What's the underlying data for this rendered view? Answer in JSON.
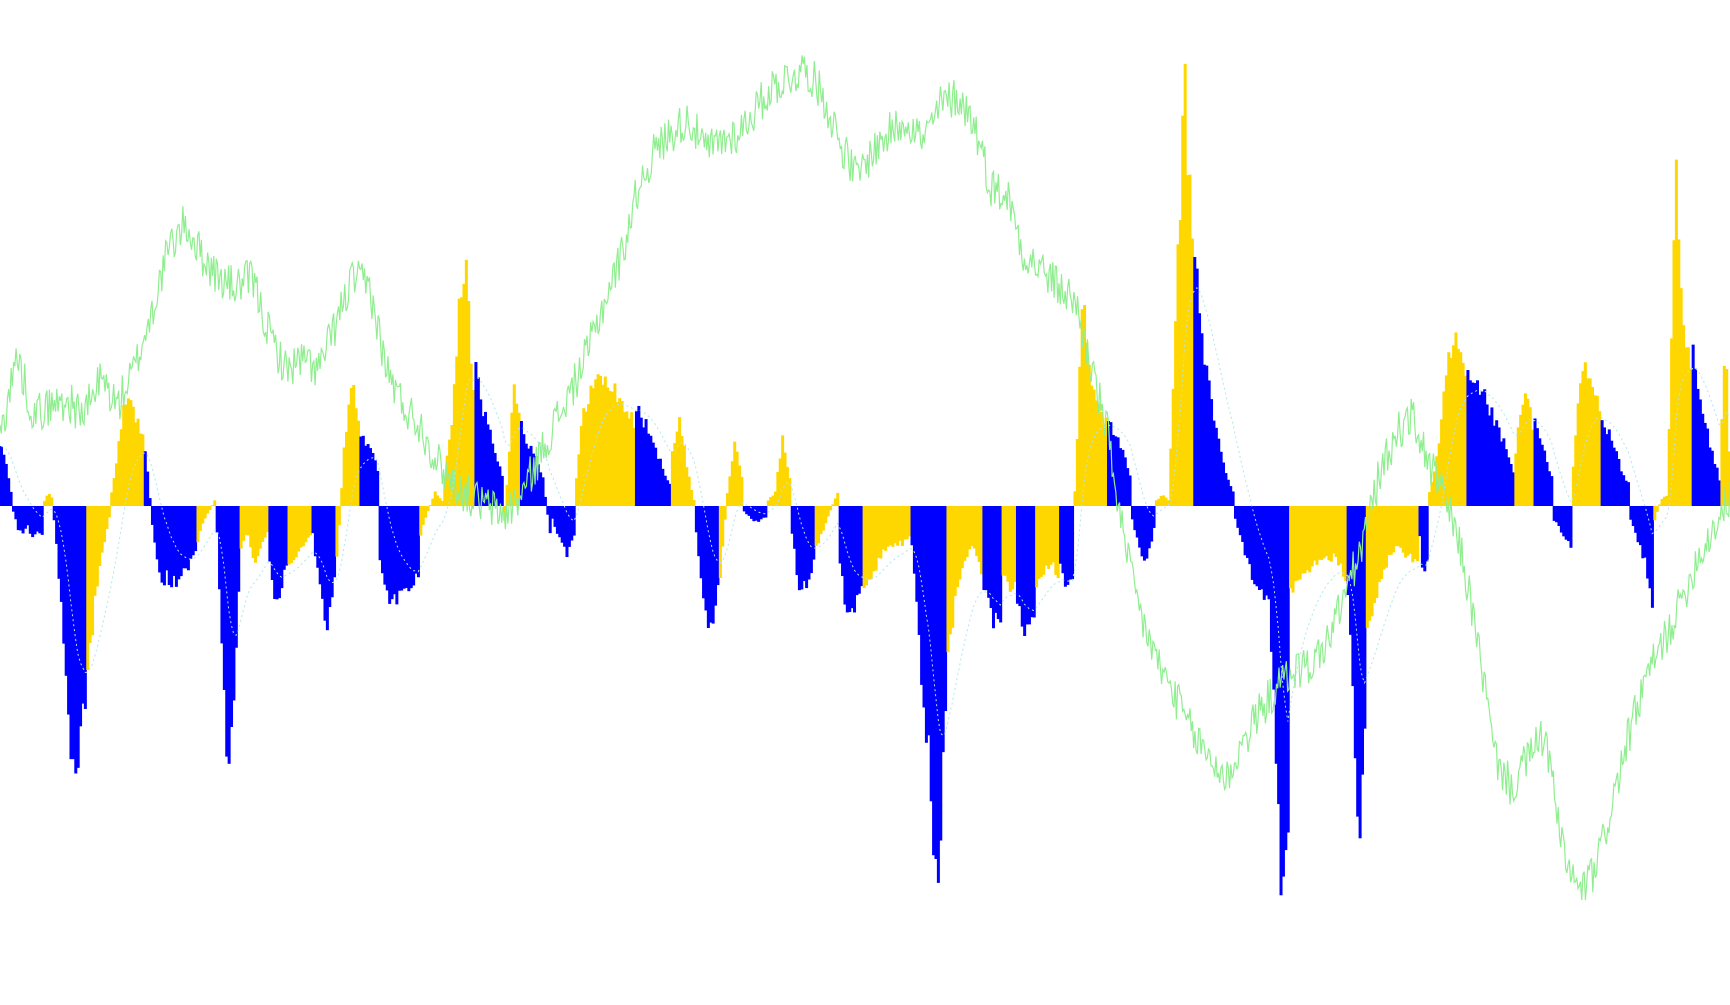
{
  "chart_data": {
    "type": "bar",
    "title": "",
    "xlabel": "",
    "ylabel": "",
    "grid": false,
    "legend": "none",
    "colors": {
      "bar_up": "#FFD700",
      "bar_down": "#0000FF",
      "price_line": "#90EE90",
      "signal_line": "#AEE7EE",
      "background": "#FFFFFF"
    },
    "ylim_histogram": [
      -1,
      1
    ],
    "ylim_price": [
      0,
      1
    ],
    "segments": [
      {
        "i0": 0,
        "i1": 5,
        "side": "blue",
        "vals": [
          0.2,
          0.18,
          0.12,
          0.05
        ]
      },
      {
        "i0": 5,
        "i1": 18,
        "side": "blue",
        "vals": [
          -0.02,
          -0.08,
          -0.1,
          -0.07,
          -0.12,
          -0.09,
          -0.11
        ]
      },
      {
        "i0": 18,
        "i1": 22,
        "side": "yellow",
        "vals": [
          0.02,
          0.05,
          0.03
        ]
      },
      {
        "i0": 22,
        "i1": 36,
        "side": "blue",
        "vals": [
          -0.05,
          -0.3,
          -0.6,
          -0.95,
          -0.88,
          -0.7
        ]
      },
      {
        "i0": 36,
        "i1": 46,
        "side": "yellow",
        "vals": [
          -0.6,
          -0.45,
          -0.3,
          -0.2,
          -0.12,
          -0.04
        ]
      },
      {
        "i0": 46,
        "i1": 60,
        "side": "yellow",
        "vals": [
          0.05,
          0.2,
          0.35,
          0.38,
          0.3,
          0.28
        ]
      },
      {
        "i0": 60,
        "i1": 70,
        "side": "blue",
        "vals": [
          0.2,
          0.05,
          -0.12,
          -0.2,
          -0.28,
          -0.25
        ]
      },
      {
        "i0": 70,
        "i1": 82,
        "side": "blue",
        "vals": [
          -0.28,
          -0.27,
          -0.25,
          -0.22,
          -0.15
        ]
      },
      {
        "i0": 82,
        "i1": 90,
        "side": "yellow",
        "vals": [
          -0.12,
          -0.05,
          -0.02,
          0.02
        ]
      },
      {
        "i0": 90,
        "i1": 100,
        "side": "blue",
        "vals": [
          -0.1,
          -0.5,
          -1.05,
          -0.7,
          -0.3
        ]
      },
      {
        "i0": 100,
        "i1": 112,
        "side": "yellow",
        "vals": [
          -0.15,
          -0.1,
          -0.2,
          -0.15,
          -0.1
        ]
      },
      {
        "i0": 112,
        "i1": 120,
        "side": "blue",
        "vals": [
          -0.2,
          -0.38,
          -0.3,
          -0.2
        ]
      },
      {
        "i0": 120,
        "i1": 130,
        "side": "yellow",
        "vals": [
          -0.2,
          -0.18,
          -0.15,
          -0.1
        ]
      },
      {
        "i0": 130,
        "i1": 140,
        "side": "blue",
        "vals": [
          -0.1,
          -0.3,
          -0.42,
          -0.25
        ]
      },
      {
        "i0": 140,
        "i1": 150,
        "side": "yellow",
        "vals": [
          -0.2,
          0.2,
          0.45,
          0.32
        ]
      },
      {
        "i0": 150,
        "i1": 158,
        "side": "blue",
        "vals": [
          0.25,
          0.22,
          0.2,
          0.12
        ]
      },
      {
        "i0": 158,
        "i1": 175,
        "side": "blue",
        "vals": [
          -0.2,
          -0.32,
          -0.35,
          -0.3,
          -0.28,
          -0.25
        ]
      },
      {
        "i0": 175,
        "i1": 185,
        "side": "yellow",
        "vals": [
          -0.1,
          -0.02,
          0.05,
          0.02
        ]
      },
      {
        "i0": 185,
        "i1": 198,
        "side": "yellow",
        "vals": [
          0.1,
          0.3,
          0.7,
          0.85,
          0.4
        ]
      },
      {
        "i0": 198,
        "i1": 210,
        "side": "blue",
        "vals": [
          0.55,
          0.35,
          0.3,
          0.2,
          0.1
        ]
      },
      {
        "i0": 210,
        "i1": 217,
        "side": "yellow",
        "vals": [
          -0.05,
          0.2,
          0.45,
          0.35
        ]
      },
      {
        "i0": 217,
        "i1": 230,
        "side": "blue",
        "vals": [
          0.3,
          0.22,
          0.18,
          0.1,
          -0.1
        ]
      },
      {
        "i0": 230,
        "i1": 240,
        "side": "blue",
        "vals": [
          -0.05,
          -0.12,
          -0.18,
          -0.1
        ]
      },
      {
        "i0": 240,
        "i1": 250,
        "side": "yellow",
        "vals": [
          0.1,
          0.35,
          0.42,
          0.45
        ]
      },
      {
        "i0": 250,
        "i1": 265,
        "side": "yellow",
        "vals": [
          0.46,
          0.44,
          0.4,
          0.35,
          0.3
        ]
      },
      {
        "i0": 265,
        "i1": 280,
        "side": "blue",
        "vals": [
          0.35,
          0.3,
          0.22,
          0.15,
          0.08
        ]
      },
      {
        "i0": 280,
        "i1": 290,
        "side": "yellow",
        "vals": [
          0.2,
          0.3,
          0.15,
          0.02
        ]
      },
      {
        "i0": 290,
        "i1": 300,
        "side": "blue",
        "vals": [
          -0.1,
          -0.35,
          -0.45,
          -0.3
        ]
      },
      {
        "i0": 300,
        "i1": 310,
        "side": "yellow",
        "vals": [
          -0.25,
          0.05,
          0.22,
          0.1
        ]
      },
      {
        "i0": 310,
        "i1": 320,
        "side": "blue",
        "vals": [
          -0.02,
          -0.06,
          -0.04
        ]
      },
      {
        "i0": 320,
        "i1": 330,
        "side": "yellow",
        "vals": [
          0.02,
          0.05,
          0.25,
          0.1
        ]
      },
      {
        "i0": 330,
        "i1": 340,
        "side": "blue",
        "vals": [
          -0.1,
          -0.3,
          -0.28,
          -0.2
        ]
      },
      {
        "i0": 340,
        "i1": 350,
        "side": "yellow",
        "vals": [
          -0.15,
          -0.05,
          0.05
        ]
      },
      {
        "i0": 350,
        "i1": 360,
        "side": "blue",
        "vals": [
          -0.2,
          -0.42,
          -0.38,
          -0.3
        ]
      },
      {
        "i0": 360,
        "i1": 380,
        "side": "yellow",
        "vals": [
          -0.3,
          -0.22,
          -0.15,
          -0.14,
          -0.12
        ]
      },
      {
        "i0": 380,
        "i1": 395,
        "side": "blue",
        "vals": [
          -0.15,
          -0.55,
          -0.9,
          -1.35,
          -0.8
        ]
      },
      {
        "i0": 395,
        "i1": 410,
        "side": "yellow",
        "vals": [
          -0.55,
          -0.3,
          -0.2,
          -0.15,
          -0.25
        ]
      },
      {
        "i0": 410,
        "i1": 418,
        "side": "blue",
        "vals": [
          -0.3,
          -0.4,
          -0.45
        ]
      },
      {
        "i0": 418,
        "i1": 424,
        "side": "yellow",
        "vals": [
          -0.25,
          -0.3,
          -0.28
        ]
      },
      {
        "i0": 424,
        "i1": 432,
        "side": "blue",
        "vals": [
          -0.35,
          -0.45,
          -0.38
        ]
      },
      {
        "i0": 432,
        "i1": 442,
        "side": "yellow",
        "vals": [
          -0.3,
          -0.25,
          -0.2,
          -0.25
        ]
      },
      {
        "i0": 442,
        "i1": 448,
        "side": "blue",
        "vals": [
          -0.2,
          -0.3,
          -0.25
        ]
      },
      {
        "i0": 448,
        "i1": 462,
        "side": "yellow",
        "vals": [
          0.05,
          0.75,
          0.5,
          0.35,
          0.3
        ]
      },
      {
        "i0": 462,
        "i1": 472,
        "side": "blue",
        "vals": [
          0.32,
          0.25,
          0.2,
          0.12
        ]
      },
      {
        "i0": 472,
        "i1": 482,
        "side": "blue",
        "vals": [
          -0.05,
          -0.15,
          -0.2,
          -0.08
        ]
      },
      {
        "i0": 482,
        "i1": 488,
        "side": "yellow",
        "vals": [
          0.02,
          0.04,
          0.02
        ]
      },
      {
        "i0": 488,
        "i1": 498,
        "side": "yellow",
        "vals": [
          0.2,
          0.9,
          1.5,
          0.9
        ]
      },
      {
        "i0": 498,
        "i1": 515,
        "side": "blue",
        "vals": [
          0.95,
          0.6,
          0.4,
          0.25,
          0.12,
          0.05
        ]
      },
      {
        "i0": 515,
        "i1": 530,
        "side": "blue",
        "vals": [
          -0.05,
          -0.15,
          -0.25,
          -0.32,
          -0.35
        ]
      },
      {
        "i0": 530,
        "i1": 538,
        "side": "blue",
        "vals": [
          -0.5,
          -0.95,
          -1.5,
          -1.1
        ]
      },
      {
        "i0": 538,
        "i1": 562,
        "side": "yellow",
        "vals": [
          -0.3,
          -0.25,
          -0.22,
          -0.2,
          -0.18,
          -0.25
        ]
      },
      {
        "i0": 562,
        "i1": 570,
        "side": "blue",
        "vals": [
          -0.3,
          -0.7,
          -1.2,
          -0.8
        ]
      },
      {
        "i0": 570,
        "i1": 592,
        "side": "yellow",
        "vals": [
          -0.45,
          -0.3,
          -0.2,
          -0.15,
          -0.18,
          -0.2
        ]
      },
      {
        "i0": 592,
        "i1": 596,
        "side": "blue",
        "vals": [
          -0.1,
          -0.28,
          -0.2
        ]
      },
      {
        "i0": 596,
        "i1": 612,
        "side": "yellow",
        "vals": [
          0.05,
          0.2,
          0.5,
          0.6,
          0.45
        ]
      },
      {
        "i0": 612,
        "i1": 632,
        "side": "blue",
        "vals": [
          0.45,
          0.42,
          0.38,
          0.3,
          0.22,
          0.12
        ]
      },
      {
        "i0": 632,
        "i1": 640,
        "side": "yellow",
        "vals": [
          0.2,
          0.35,
          0.4,
          0.3
        ]
      },
      {
        "i0": 640,
        "i1": 648,
        "side": "blue",
        "vals": [
          0.3,
          0.2,
          0.1
        ]
      },
      {
        "i0": 648,
        "i1": 656,
        "side": "blue",
        "vals": [
          -0.05,
          -0.1,
          -0.15
        ]
      },
      {
        "i0": 656,
        "i1": 668,
        "side": "yellow",
        "vals": [
          0.15,
          0.5,
          0.45,
          0.35
        ]
      },
      {
        "i0": 668,
        "i1": 680,
        "side": "blue",
        "vals": [
          0.3,
          0.25,
          0.15,
          0.08
        ]
      },
      {
        "i0": 680,
        "i1": 690,
        "side": "blue",
        "vals": [
          -0.05,
          -0.12,
          -0.2,
          -0.35
        ]
      },
      {
        "i0": 690,
        "i1": 696,
        "side": "yellow",
        "vals": [
          -0.05,
          0.02,
          0.04
        ]
      },
      {
        "i0": 696,
        "i1": 706,
        "side": "yellow",
        "vals": [
          0.3,
          1.25,
          0.6,
          0.5
        ]
      },
      {
        "i0": 706,
        "i1": 718,
        "side": "blue",
        "vals": [
          0.55,
          0.38,
          0.28,
          0.18,
          0.1
        ]
      },
      {
        "i0": 718,
        "i1": 722,
        "side": "yellow",
        "vals": [
          0.3,
          0.6,
          0.2
        ]
      }
    ],
    "price_series": {
      "name": "",
      "x_range": [
        0,
        722
      ],
      "values": [
        0.15,
        0.33,
        0.2,
        0.22,
        0.23,
        0.2,
        0.28,
        0.22,
        0.3,
        0.42,
        0.56,
        0.62,
        0.55,
        0.5,
        0.48,
        0.5,
        0.38,
        0.3,
        0.32,
        0.3,
        0.4,
        0.5,
        0.48,
        0.3,
        0.22,
        0.18,
        0.1,
        0.05,
        0.02,
        0.0,
        -0.02,
        0.02,
        0.1,
        0.18,
        0.25,
        0.34,
        0.45,
        0.55,
        0.7,
        0.78,
        0.82,
        0.85,
        0.78,
        0.8,
        0.82,
        0.87,
        0.92,
        0.94,
        0.96,
        0.9,
        0.8,
        0.72,
        0.78,
        0.82,
        0.85,
        0.8,
        0.88,
        0.9,
        0.84,
        0.7,
        0.68,
        0.55,
        0.52,
        0.48,
        0.45,
        0.3,
        0.15,
        -0.1,
        -0.25,
        -0.35,
        -0.42,
        -0.5,
        -0.55,
        -0.6,
        -0.52,
        -0.45,
        -0.4,
        -0.36,
        -0.35,
        -0.3,
        -0.2,
        -0.1,
        0.05,
        0.15,
        0.2,
        0.1,
        0.02,
        -0.1,
        -0.3,
        -0.55,
        -0.62,
        -0.55,
        -0.5,
        -0.75,
        -0.85,
        -0.8,
        -0.65,
        -0.5,
        -0.38,
        -0.3,
        -0.22,
        -0.12,
        -0.05,
        0.02
      ]
    },
    "signal_series": {
      "name": "",
      "description_visible": false
    }
  }
}
